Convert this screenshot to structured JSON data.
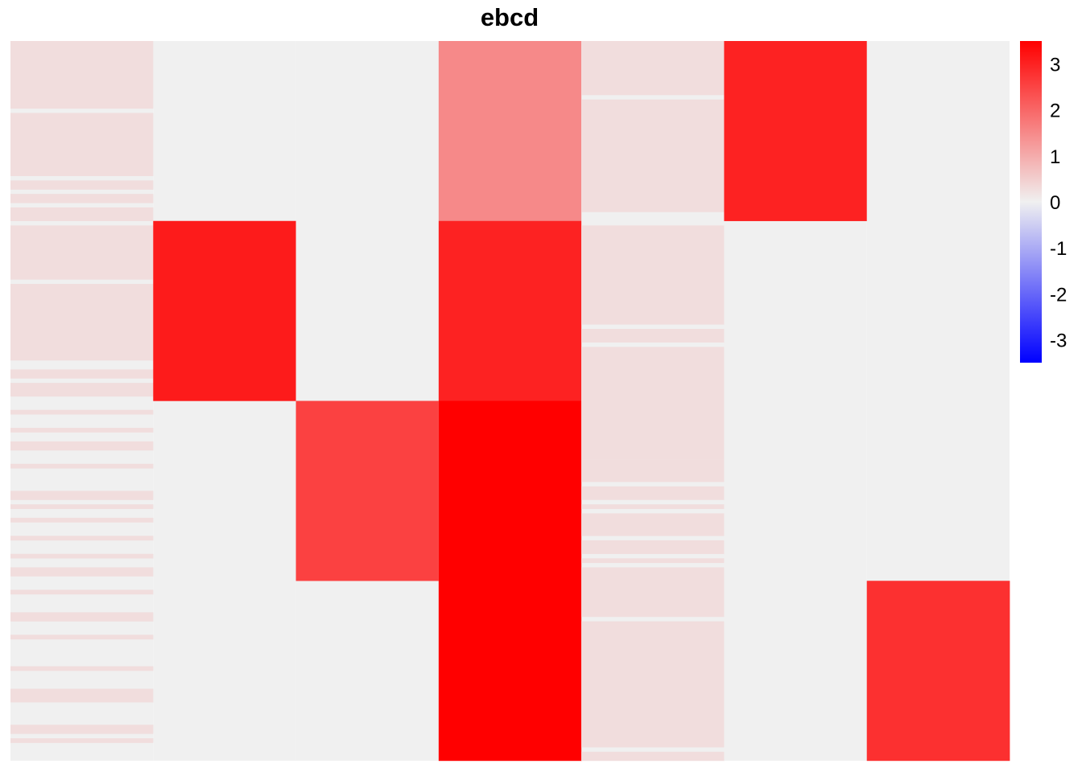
{
  "chart_data": {
    "type": "heatmap",
    "title": "ebcd",
    "n_rows": 160,
    "n_cols": 7,
    "default_value": 0,
    "color_scale": {
      "low": "#0000ff",
      "mid": "#f0f0f0",
      "high": "#ff0000",
      "min": -3.5,
      "max": 3.5,
      "ticks": [
        3,
        2,
        1,
        0,
        -1,
        -2,
        -3
      ],
      "tick_labels": [
        "3",
        "2",
        "1",
        "0",
        "-1",
        "-2",
        "-3"
      ]
    },
    "columns": [
      {
        "segments": [
          {
            "from": 0,
            "to": 14,
            "value": 0.28
          },
          {
            "from": 16,
            "to": 29,
            "value": 0.28
          },
          {
            "from": 31,
            "to": 32,
            "value": 0.28
          },
          {
            "from": 34,
            "to": 35,
            "value": 0.28
          },
          {
            "from": 37,
            "to": 39,
            "value": 0.28
          },
          {
            "from": 41,
            "to": 52,
            "value": 0.28
          },
          {
            "from": 54,
            "to": 70,
            "value": 0.28
          },
          {
            "from": 73,
            "to": 74,
            "value": 0.28
          },
          {
            "from": 76,
            "to": 78,
            "value": 0.28
          },
          {
            "from": 82,
            "to": 82,
            "value": 0.28
          },
          {
            "from": 86,
            "to": 86,
            "value": 0.28
          },
          {
            "from": 89,
            "to": 90,
            "value": 0.28
          },
          {
            "from": 94,
            "to": 94,
            "value": 0.28
          },
          {
            "from": 100,
            "to": 101,
            "value": 0.28
          },
          {
            "from": 103,
            "to": 103,
            "value": 0.28
          },
          {
            "from": 106,
            "to": 106,
            "value": 0.28
          },
          {
            "from": 110,
            "to": 110,
            "value": 0.28
          },
          {
            "from": 114,
            "to": 114,
            "value": 0.28
          },
          {
            "from": 117,
            "to": 118,
            "value": 0.28
          },
          {
            "from": 122,
            "to": 122,
            "value": 0.28
          },
          {
            "from": 127,
            "to": 128,
            "value": 0.28
          },
          {
            "from": 132,
            "to": 132,
            "value": 0.28
          },
          {
            "from": 139,
            "to": 139,
            "value": 0.28
          },
          {
            "from": 144,
            "to": 146,
            "value": 0.28
          },
          {
            "from": 152,
            "to": 153,
            "value": 0.28
          },
          {
            "from": 155,
            "to": 155,
            "value": 0.28
          }
        ]
      },
      {
        "segments": [
          {
            "from": 40,
            "to": 79,
            "value": 3.1
          }
        ]
      },
      {
        "segments": [
          {
            "from": 80,
            "to": 119,
            "value": 2.55
          }
        ]
      },
      {
        "segments": [
          {
            "from": 0,
            "to": 39,
            "value": 1.5
          },
          {
            "from": 40,
            "to": 79,
            "value": 3.0
          },
          {
            "from": 80,
            "to": 159,
            "value": 3.5
          }
        ]
      },
      {
        "segments": [
          {
            "from": 0,
            "to": 11,
            "value": 0.28
          },
          {
            "from": 13,
            "to": 37,
            "value": 0.28
          },
          {
            "from": 41,
            "to": 62,
            "value": 0.28
          },
          {
            "from": 64,
            "to": 66,
            "value": 0.28
          },
          {
            "from": 68,
            "to": 92,
            "value": 0.28
          },
          {
            "from": 93,
            "to": 97,
            "value": 0.28
          },
          {
            "from": 99,
            "to": 101,
            "value": 0.28
          },
          {
            "from": 103,
            "to": 103,
            "value": 0.28
          },
          {
            "from": 105,
            "to": 109,
            "value": 0.28
          },
          {
            "from": 111,
            "to": 113,
            "value": 0.28
          },
          {
            "from": 115,
            "to": 115,
            "value": 0.28
          },
          {
            "from": 117,
            "to": 127,
            "value": 0.28
          },
          {
            "from": 129,
            "to": 156,
            "value": 0.28
          },
          {
            "from": 158,
            "to": 159,
            "value": 0.28
          }
        ]
      },
      {
        "segments": [
          {
            "from": 0,
            "to": 39,
            "value": 3.0
          }
        ]
      },
      {
        "segments": [
          {
            "from": 120,
            "to": 159,
            "value": 2.8
          }
        ]
      }
    ]
  }
}
